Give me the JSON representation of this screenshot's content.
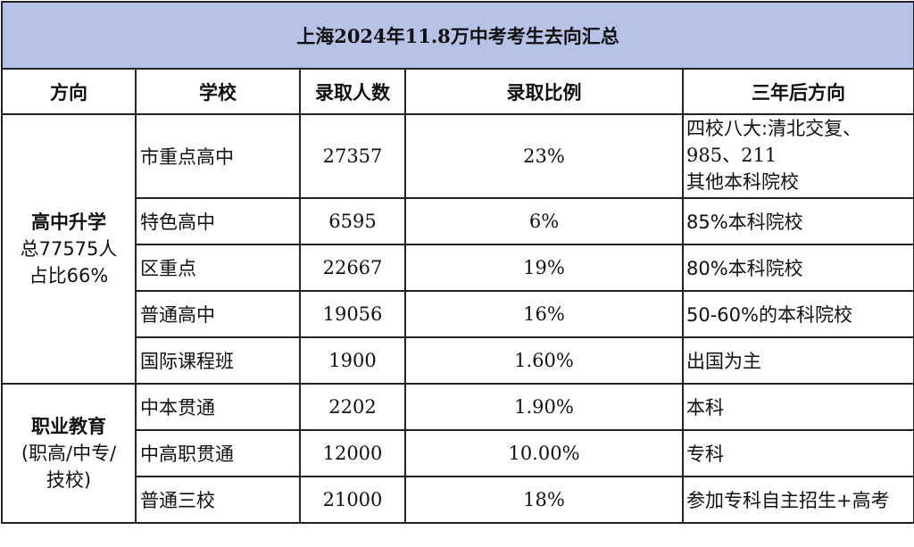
{
  "title": "上海2024年11.8万中考考生去向汇总",
  "headers": {
    "direction": "方向",
    "school": "学校",
    "admitted": "录取人数",
    "ratio": "录取比例",
    "future": "三年后方向"
  },
  "groups": {
    "high_school": {
      "title": "高中升学",
      "total": "总77575人",
      "share": "占比66%"
    },
    "vocational": {
      "title": "职业教育",
      "sub1": "(职高/中专/",
      "sub2": "技校)"
    }
  },
  "rows": [
    {
      "school": "市重点高中",
      "admitted": "27357",
      "ratio": "23%",
      "future_line1": "四校八大:清北交复、",
      "future_line2": "985、211",
      "future_line3": "其他本科院校"
    },
    {
      "school": "特色高中",
      "admitted": "6595",
      "ratio": "6%",
      "future": "85%本科院校"
    },
    {
      "school": "区重点",
      "admitted": "22667",
      "ratio": "19%",
      "future": "80%本科院校"
    },
    {
      "school": "普通高中",
      "admitted": "19056",
      "ratio": "16%",
      "future": "50-60%的本科院校"
    },
    {
      "school": "国际课程班",
      "admitted": "1900",
      "ratio": "1.60%",
      "future": "出国为主"
    },
    {
      "school": "中本贯通",
      "admitted": "2202",
      "ratio": "1.90%",
      "future": "本科"
    },
    {
      "school": "中高职贯通",
      "admitted": "12000",
      "ratio": "10.00%",
      "future": "专科"
    },
    {
      "school": "普通三校",
      "admitted": "21000",
      "ratio": "18%",
      "future": "参加专科自主招生+高考"
    }
  ]
}
